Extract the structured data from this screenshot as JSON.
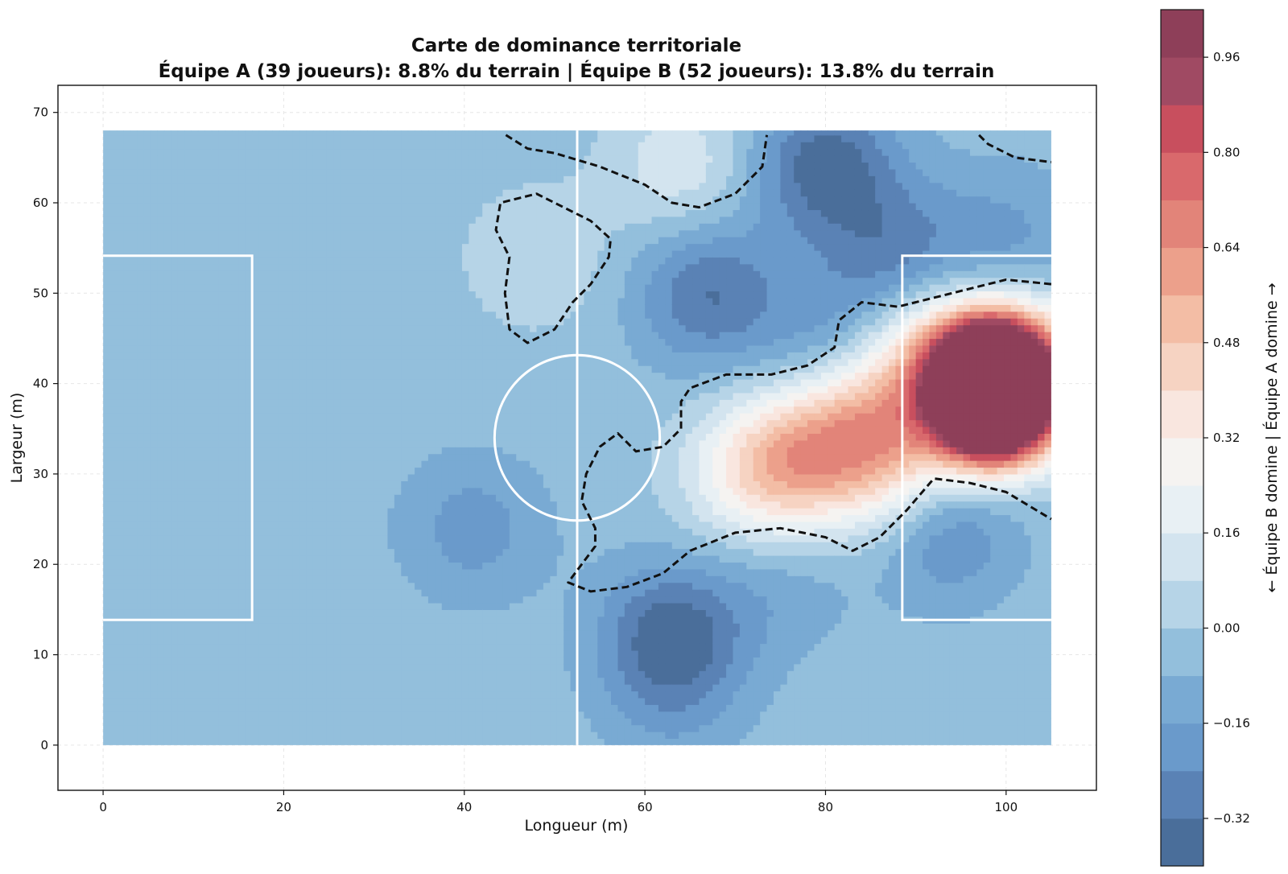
{
  "chart_data": {
    "type": "heatmap",
    "title": "Carte de dominance territoriale",
    "subtitle": "Équipe A (39 joueurs): 8.8% du terrain | Équipe B (52 joueurs): 13.8% du terrain",
    "xlabel": "Longueur (m)",
    "ylabel": "Largeur (m)",
    "xlim": [
      -5,
      110
    ],
    "ylim": [
      -5,
      73
    ],
    "x_ticks": [
      "0",
      "20",
      "40",
      "60",
      "80",
      "100"
    ],
    "y_ticks": [
      "0",
      "10",
      "20",
      "30",
      "40",
      "50",
      "60",
      "70"
    ],
    "x_tick_values": [
      0,
      20,
      40,
      60,
      80,
      100
    ],
    "y_tick_values": [
      0,
      10,
      20,
      30,
      40,
      50,
      60,
      70
    ],
    "grid": true,
    "pitch": {
      "length": 105,
      "width": 68,
      "center_circle_radius": 9.15,
      "penalty_box_depth": 16.5,
      "penalty_box_width": 40.3
    },
    "field_baseline_value": -0.04,
    "hotspots": [
      {
        "x": 98.5,
        "y": 36.5,
        "value": 0.99
      },
      {
        "x": 99.0,
        "y": 42.0,
        "value": 0.9
      },
      {
        "x": 97.0,
        "y": 39.5,
        "value": 0.8
      },
      {
        "x": 103.0,
        "y": 40.0,
        "value": 0.48
      },
      {
        "x": 92.0,
        "y": 44.0,
        "value": 0.34
      },
      {
        "x": 85.0,
        "y": 36.0,
        "value": 0.36
      },
      {
        "x": 78.0,
        "y": 32.0,
        "value": 0.34
      },
      {
        "x": 72.0,
        "y": 30.0,
        "value": 0.28
      },
      {
        "x": 88.0,
        "y": 30.0,
        "value": 0.22
      },
      {
        "x": 64.0,
        "y": 64.0,
        "value": 0.14
      },
      {
        "x": 48.0,
        "y": 54.0,
        "value": 0.07
      },
      {
        "x": 80.0,
        "y": 64.0,
        "value": -0.38
      },
      {
        "x": 67.0,
        "y": 50.0,
        "value": -0.32
      },
      {
        "x": 88.0,
        "y": 54.0,
        "value": -0.28
      },
      {
        "x": 63.0,
        "y": 12.0,
        "value": -0.38
      },
      {
        "x": 93.0,
        "y": 24.0,
        "value": -0.28
      },
      {
        "x": 41.0,
        "y": 24.0,
        "value": -0.2
      },
      {
        "x": 80.0,
        "y": 45.0,
        "value": -0.2
      },
      {
        "x": 100.0,
        "y": 56.0,
        "value": -0.18
      },
      {
        "x": 75.0,
        "y": 18.0,
        "value": -0.14
      },
      {
        "x": 63.0,
        "y": 4.0,
        "value": -0.12
      }
    ],
    "contour_lines": [
      [
        [
          44.6,
          67.5
        ],
        [
          47,
          66
        ],
        [
          50,
          65.5
        ],
        [
          55,
          64
        ],
        [
          60,
          62
        ],
        [
          63,
          60
        ],
        [
          66,
          59.5
        ],
        [
          70,
          61
        ],
        [
          73,
          64
        ],
        [
          73.5,
          67.5
        ]
      ],
      [
        [
          97,
          67.5
        ],
        [
          98,
          66.5
        ],
        [
          101,
          65
        ],
        [
          105,
          64.5
        ]
      ],
      [
        [
          52,
          59
        ],
        [
          48,
          61
        ],
        [
          44,
          60
        ],
        [
          43.5,
          57
        ],
        [
          45,
          54
        ],
        [
          44.5,
          50
        ],
        [
          45,
          46
        ],
        [
          47,
          44.5
        ],
        [
          50,
          46
        ],
        [
          52,
          49
        ],
        [
          54,
          51
        ],
        [
          56,
          54
        ],
        [
          56.2,
          56
        ],
        [
          54,
          58
        ],
        [
          52,
          59
        ]
      ],
      [
        [
          105,
          51
        ],
        [
          100,
          51.5
        ],
        [
          96,
          50.5
        ],
        [
          92,
          49.5
        ],
        [
          88,
          48.5
        ],
        [
          84,
          49
        ],
        [
          81.5,
          47
        ],
        [
          81,
          44
        ],
        [
          78,
          42
        ],
        [
          74,
          41
        ],
        [
          69,
          41
        ],
        [
          65,
          39.5
        ],
        [
          64,
          38
        ],
        [
          64,
          35
        ],
        [
          62,
          33
        ],
        [
          59,
          32.5
        ],
        [
          58,
          33.5
        ],
        [
          57,
          34.5
        ],
        [
          55,
          33
        ],
        [
          53.5,
          30
        ],
        [
          53,
          27
        ],
        [
          54.5,
          24
        ],
        [
          54.5,
          22
        ],
        [
          53,
          20
        ],
        [
          51.5,
          18
        ],
        [
          54,
          17
        ],
        [
          58,
          17.5
        ],
        [
          62,
          19
        ],
        [
          65,
          21.5
        ],
        [
          70,
          23.5
        ],
        [
          75,
          24
        ],
        [
          80,
          23
        ],
        [
          83,
          21.5
        ],
        [
          86,
          23
        ],
        [
          89,
          26
        ],
        [
          92,
          29.5
        ],
        [
          96,
          29
        ],
        [
          100,
          28
        ],
        [
          105,
          25
        ]
      ]
    ]
  },
  "colorbar": {
    "label": "← Équipe B domine | Équipe A domine →",
    "ticks": [
      "−0.32",
      "−0.16",
      "0.00",
      "0.16",
      "0.32",
      "0.48",
      "0.64",
      "0.80",
      "0.96"
    ],
    "tick_values": [
      -0.32,
      -0.16,
      0.0,
      0.16,
      0.32,
      0.48,
      0.64,
      0.8,
      0.96
    ],
    "range": [
      -0.4,
      1.04
    ],
    "levels": [
      -0.4,
      -0.32,
      -0.24,
      -0.16,
      -0.08,
      0.0,
      0.08,
      0.16,
      0.24,
      0.32,
      0.4,
      0.48,
      0.56,
      0.64,
      0.72,
      0.8,
      0.88,
      0.96,
      1.04
    ],
    "colors": [
      "#4a6e9a",
      "#5a82b5",
      "#6a9acb",
      "#79aad3",
      "#93bfdc",
      "#b6d4e7",
      "#d3e4ef",
      "#e8f0f4",
      "#f5f3f1",
      "#f9e6df",
      "#f6d3c2",
      "#f3bda5",
      "#eca08b",
      "#e28479",
      "#d9696c",
      "#c84f5e",
      "#a04a63",
      "#8e3f59"
    ]
  }
}
